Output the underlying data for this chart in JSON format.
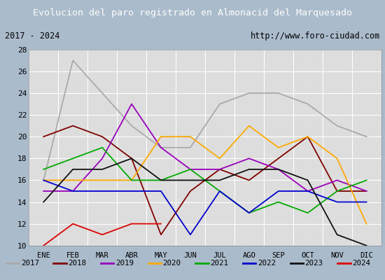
{
  "title": "Evolucion del paro registrado en Almonacid del Marquesado",
  "subtitle_left": "2017 - 2024",
  "subtitle_right": "http://www.foro-ciudad.com",
  "months": [
    "ENE",
    "FEB",
    "MAR",
    "ABR",
    "MAY",
    "JUN",
    "JUL",
    "AGO",
    "SEP",
    "OCT",
    "NOV",
    "DIC"
  ],
  "ylim": [
    10,
    28
  ],
  "yticks": [
    10,
    12,
    14,
    16,
    18,
    20,
    22,
    24,
    26,
    28
  ],
  "series": {
    "2017": {
      "color": "#aaaaaa",
      "values": [
        16,
        27,
        24,
        21,
        19,
        19,
        23,
        24,
        24,
        23,
        21,
        20
      ]
    },
    "2018": {
      "color": "#800000",
      "values": [
        20,
        21,
        20,
        18,
        11,
        15,
        17,
        16,
        18,
        20,
        15,
        15
      ]
    },
    "2019": {
      "color": "#9900bb",
      "values": [
        15,
        15,
        18,
        23,
        19,
        17,
        17,
        18,
        17,
        15,
        16,
        15
      ]
    },
    "2020": {
      "color": "#ffaa00",
      "values": [
        16,
        16,
        16,
        16,
        20,
        20,
        18,
        21,
        19,
        20,
        18,
        12
      ]
    },
    "2021": {
      "color": "#00aa00",
      "values": [
        17,
        18,
        19,
        16,
        16,
        17,
        15,
        13,
        14,
        13,
        15,
        16
      ]
    },
    "2022": {
      "color": "#0000cc",
      "values": [
        16,
        15,
        15,
        15,
        15,
        11,
        15,
        13,
        15,
        15,
        14,
        14
      ]
    },
    "2023": {
      "color": "#111111",
      "values": [
        14,
        17,
        17,
        18,
        16,
        16,
        16,
        17,
        17,
        16,
        11,
        10
      ]
    },
    "2024": {
      "color": "#dd0000",
      "values": [
        10,
        12,
        11,
        12,
        12,
        null,
        null,
        null,
        null,
        null,
        null,
        null
      ]
    }
  },
  "title_bg_color": "#5588cc",
  "title_font_color": "#ffffff",
  "plot_bg_color": "#dddddd",
  "grid_color": "#ffffff",
  "outer_bg_color": "#aabbcc",
  "border_color": "#4466aa",
  "legend_bg_color": "#ffffff"
}
